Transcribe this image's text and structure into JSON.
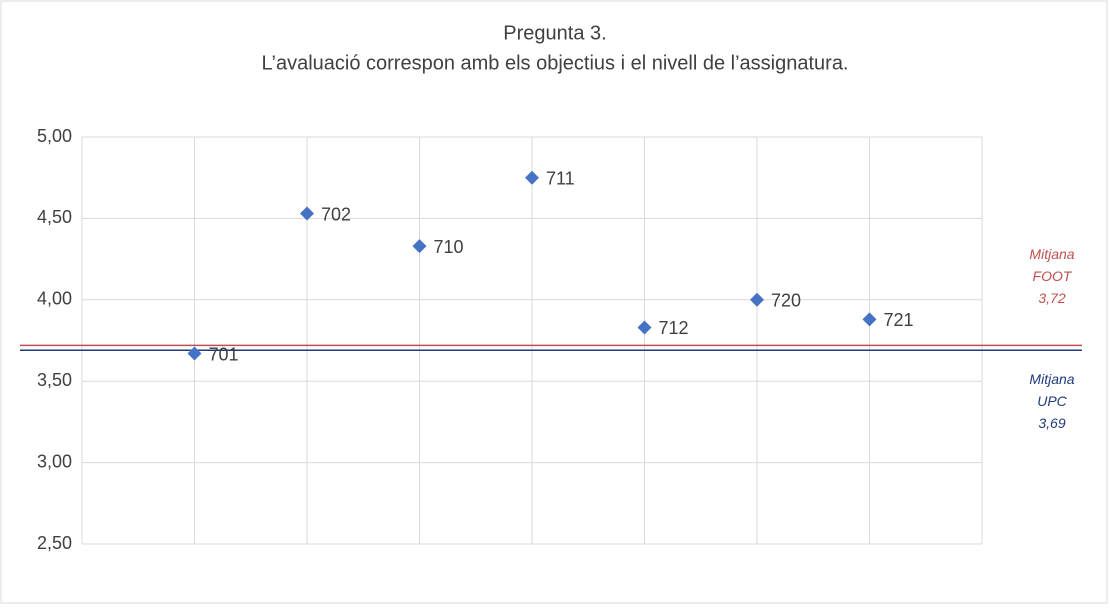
{
  "chart_data": {
    "type": "scatter",
    "title": "Pregunta 3.",
    "subtitle": "L’avaluació correspon amb els objectius i el nivell de l’assignatura.",
    "x": [
      1,
      2,
      3,
      4,
      5,
      6,
      7
    ],
    "values": [
      3.67,
      4.53,
      4.33,
      4.75,
      3.83,
      4.0,
      3.88
    ],
    "labels": [
      "701",
      "702",
      "710",
      "711",
      "712",
      "720",
      "721"
    ],
    "color": "#4472c4",
    "xlim": [
      0,
      8
    ],
    "xticks": [
      0,
      1,
      2,
      3,
      4,
      5,
      6,
      7,
      8
    ],
    "ylim": [
      2.5,
      5
    ],
    "yticks": [
      {
        "value": 2.5,
        "label": "2,50"
      },
      {
        "value": 3,
        "label": "3,00"
      },
      {
        "value": 3.5,
        "label": "3,50"
      },
      {
        "value": 4,
        "label": "4,00"
      },
      {
        "value": 4.5,
        "label": "4,50"
      },
      {
        "value": 5,
        "label": "5,00"
      }
    ],
    "grid": true,
    "reference_lines": [
      {
        "name": [
          "Mitjana",
          "FOOT"
        ],
        "value": 3.72,
        "value_label": "3,72",
        "color": "#c0504d"
      },
      {
        "name": [
          "Mitjana",
          "UPC"
        ],
        "value": 3.69,
        "value_label": "3,69",
        "color": "#1f3a7a"
      }
    ]
  }
}
